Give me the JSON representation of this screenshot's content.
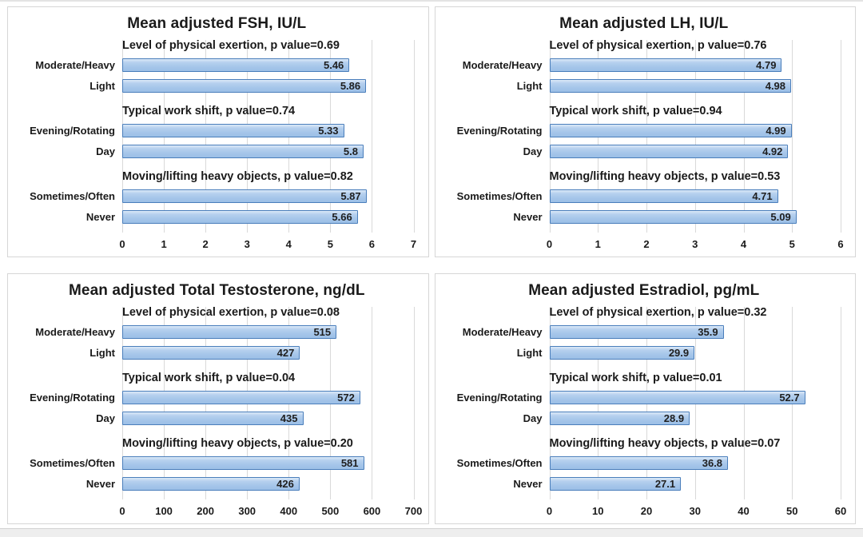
{
  "page": {
    "background": "#ffffff",
    "top_rule_color": "#e3e3e3",
    "bottom_strip_color": "#eeeeee"
  },
  "styles": {
    "bar_fill": "#a6c6ea",
    "bar_fill_highlight": "#dce9f7",
    "bar_border": "#4a7ebb",
    "gridline_color": "#d9d9d9",
    "panel_border": "#d6d6d6",
    "text_color": "#1a1a1a"
  },
  "chart_data": [
    {
      "type": "bar",
      "orientation": "horizontal",
      "title": "Mean adjusted FSH, IU/L",
      "xlabel": "",
      "ylabel": "",
      "xlim": [
        0,
        7
      ],
      "xticks": [
        0,
        1,
        2,
        3,
        4,
        5,
        6,
        7
      ],
      "grid": true,
      "legend": false,
      "groups": [
        {
          "annotation": "Level of physical exertion, p value=0.69",
          "bars": [
            {
              "label": "Moderate/Heavy",
              "value": 5.46,
              "value_label": "5.46"
            },
            {
              "label": "Light",
              "value": 5.86,
              "value_label": "5.86"
            }
          ]
        },
        {
          "annotation": "Typical work shift, p value=0.74",
          "bars": [
            {
              "label": "Evening/Rotating",
              "value": 5.33,
              "value_label": "5.33"
            },
            {
              "label": "Day",
              "value": 5.8,
              "value_label": "5.8"
            }
          ]
        },
        {
          "annotation": "Moving/lifting heavy objects, p value=0.82",
          "bars": [
            {
              "label": "Sometimes/Often",
              "value": 5.87,
              "value_label": "5.87"
            },
            {
              "label": "Never",
              "value": 5.66,
              "value_label": "5.66"
            }
          ]
        }
      ]
    },
    {
      "type": "bar",
      "orientation": "horizontal",
      "title": "Mean adjusted LH, IU/L",
      "xlabel": "",
      "ylabel": "",
      "xlim": [
        0,
        6
      ],
      "xticks": [
        0,
        1,
        2,
        3,
        4,
        5,
        6
      ],
      "grid": true,
      "legend": false,
      "groups": [
        {
          "annotation": "Level of physical exertion, p value=0.76",
          "bars": [
            {
              "label": "Moderate/Heavy",
              "value": 4.79,
              "value_label": "4.79"
            },
            {
              "label": "Light",
              "value": 4.98,
              "value_label": "4.98"
            }
          ]
        },
        {
          "annotation": "Typical work shift, p value=0.94",
          "bars": [
            {
              "label": "Evening/Rotating",
              "value": 4.99,
              "value_label": "4.99"
            },
            {
              "label": "Day",
              "value": 4.92,
              "value_label": "4.92"
            }
          ]
        },
        {
          "annotation": "Moving/lifting heavy objects, p value=0.53",
          "bars": [
            {
              "label": "Sometimes/Often",
              "value": 4.71,
              "value_label": "4.71"
            },
            {
              "label": "Never",
              "value": 5.09,
              "value_label": "5.09"
            }
          ]
        }
      ]
    },
    {
      "type": "bar",
      "orientation": "horizontal",
      "title": "Mean adjusted Total Testosterone, ng/dL",
      "xlabel": "",
      "ylabel": "",
      "xlim": [
        0,
        700
      ],
      "xticks": [
        0,
        100,
        200,
        300,
        400,
        500,
        600,
        700
      ],
      "grid": true,
      "legend": false,
      "groups": [
        {
          "annotation": "Level of physical exertion, p value=0.08",
          "bars": [
            {
              "label": "Moderate/Heavy",
              "value": 515,
              "value_label": "515"
            },
            {
              "label": "Light",
              "value": 427,
              "value_label": "427"
            }
          ]
        },
        {
          "annotation": "Typical work shift, p value=0.04",
          "bars": [
            {
              "label": "Evening/Rotating",
              "value": 572,
              "value_label": "572"
            },
            {
              "label": "Day",
              "value": 435,
              "value_label": "435"
            }
          ]
        },
        {
          "annotation": "Moving/lifting heavy objects, p value=0.20",
          "bars": [
            {
              "label": "Sometimes/Often",
              "value": 581,
              "value_label": "581"
            },
            {
              "label": "Never",
              "value": 426,
              "value_label": "426"
            }
          ]
        }
      ]
    },
    {
      "type": "bar",
      "orientation": "horizontal",
      "title": "Mean adjusted Estradiol, pg/mL",
      "xlabel": "",
      "ylabel": "",
      "xlim": [
        0,
        60
      ],
      "xticks": [
        0,
        10,
        20,
        30,
        40,
        50,
        60
      ],
      "grid": true,
      "legend": false,
      "groups": [
        {
          "annotation": "Level of physical exertion, p value=0.32",
          "bars": [
            {
              "label": "Moderate/Heavy",
              "value": 35.9,
              "value_label": "35.9"
            },
            {
              "label": "Light",
              "value": 29.9,
              "value_label": "29.9"
            }
          ]
        },
        {
          "annotation": "Typical work shift, p value=0.01",
          "bars": [
            {
              "label": "Evening/Rotating",
              "value": 52.7,
              "value_label": "52.7"
            },
            {
              "label": "Day",
              "value": 28.9,
              "value_label": "28.9"
            }
          ]
        },
        {
          "annotation": "Moving/lifting heavy objects, p value=0.07",
          "bars": [
            {
              "label": "Sometimes/Often",
              "value": 36.8,
              "value_label": "36.8"
            },
            {
              "label": "Never",
              "value": 27.1,
              "value_label": "27.1"
            }
          ]
        }
      ]
    }
  ]
}
